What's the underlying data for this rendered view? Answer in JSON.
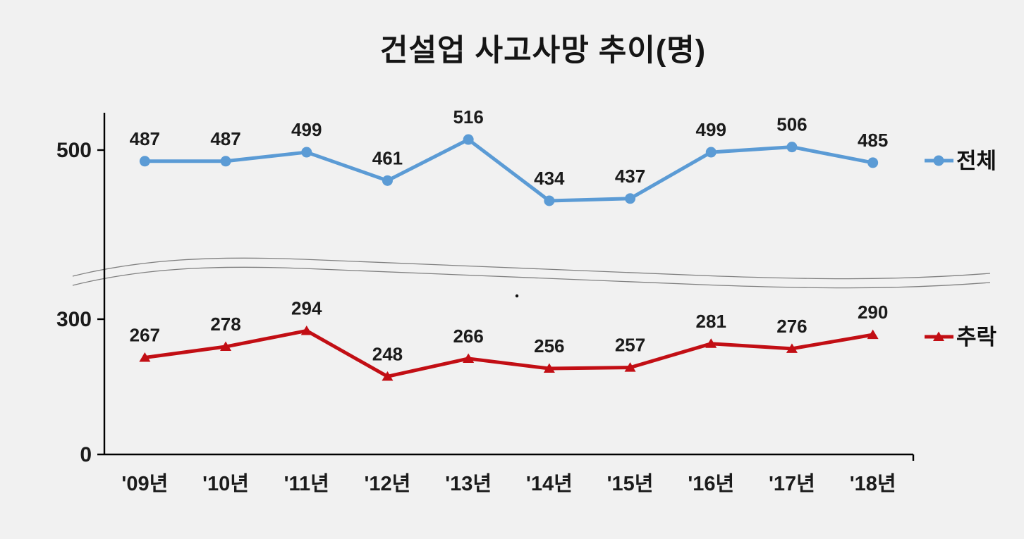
{
  "chart_data": {
    "type": "line",
    "title": "건설업 사고사망 추이(명)",
    "categories": [
      "'09년",
      "'10년",
      "'11년",
      "'12년",
      "'13년",
      "'14년",
      "'15년",
      "'16년",
      "'17년",
      "'18년"
    ],
    "series": [
      {
        "name": "전체",
        "color": "#5B9BD5",
        "marker": "circle",
        "values": [
          487,
          487,
          499,
          461,
          516,
          434,
          437,
          499,
          506,
          485
        ]
      },
      {
        "name": "추락",
        "color": "#C20E14",
        "marker": "triangle",
        "values": [
          267,
          278,
          294,
          248,
          266,
          256,
          257,
          281,
          276,
          290
        ]
      }
    ],
    "y_ticks": [
      "0",
      "300",
      "500"
    ],
    "axis_break": true,
    "legend_position": "right",
    "grid": "off",
    "colors": {
      "background": "#F1F1F1",
      "axis": "#000000",
      "break_line": "#808080",
      "label_text": "#1B1B1B"
    }
  }
}
